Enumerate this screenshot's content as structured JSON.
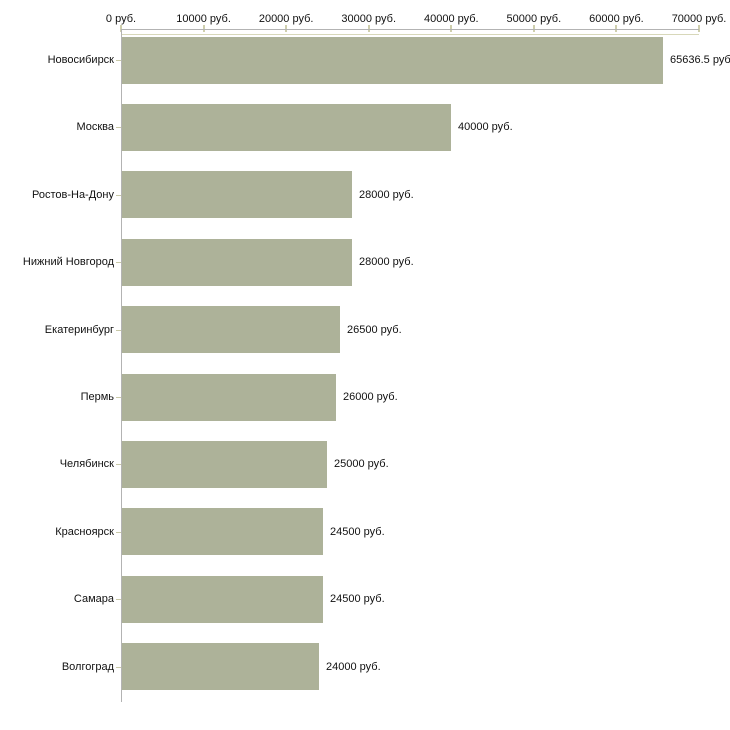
{
  "chart_data": {
    "type": "bar",
    "orientation": "horizontal",
    "title": "",
    "unit": "руб.",
    "categories": [
      "Новосибирск",
      "Москва",
      "Ростов-На-Дону",
      "Нижний Новгород",
      "Екатеринбург",
      "Пермь",
      "Челябинск",
      "Красноярск",
      "Самара",
      "Волгоград"
    ],
    "values": [
      65636.5,
      40000,
      28000,
      28000,
      26500,
      26000,
      25000,
      24500,
      24500,
      24000
    ],
    "value_labels": [
      "65636.5 руб.",
      "40000 руб.",
      "28000 руб.",
      "28000 руб.",
      "26500 руб.",
      "26000 руб.",
      "25000 руб.",
      "24500 руб.",
      "24500 руб.",
      "24000 руб."
    ],
    "x_axis": {
      "position": "top",
      "range": [
        0,
        70000
      ],
      "ticks": [
        0,
        10000,
        20000,
        30000,
        40000,
        50000,
        60000,
        70000
      ],
      "tick_labels": [
        "0 руб.",
        "10000 руб.",
        "20000 руб.",
        "30000 руб.",
        "40000 руб.",
        "50000 руб.",
        "60000 руб.",
        "70000 руб."
      ]
    },
    "legend": "none",
    "grid": "off",
    "colors": {
      "bar": "#adb299",
      "axis_line_gray": "#b3b3b3",
      "axis_tick_khaki": "#cfcfad",
      "plot_border_khaki": "#d8d8ba",
      "text": "#111111",
      "background": "#ffffff"
    }
  }
}
